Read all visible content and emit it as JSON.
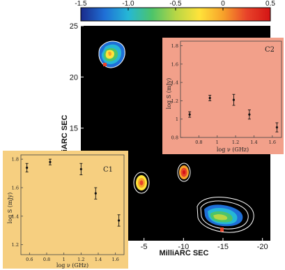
{
  "chart_data": [
    {
      "type": "contour_map",
      "colorbar": {
        "ticks": [
          "-1.5",
          "-1.0",
          "-0.5",
          "0",
          "0.5"
        ],
        "range": [
          -1.5,
          0.5
        ],
        "colors": [
          "#1a2a8a",
          "#1f6fd6",
          "#25b7d6",
          "#4cc46a",
          "#b7d645",
          "#ffe33a",
          "#f7a22a",
          "#e8432a",
          "#d41414"
        ]
      },
      "ylabel": "MilliARC SEC",
      "xlabel": "MilliARC SEC",
      "yticks": [
        "25",
        "20",
        "15",
        "10",
        "5"
      ],
      "xticks": [
        "0",
        "-5",
        "-10",
        "-15",
        "-20"
      ],
      "xlim": [
        3,
        -21
      ],
      "ylim": [
        4,
        25
      ],
      "background_color": "#000000",
      "components": [
        {
          "x": -0.6,
          "y": 20.4,
          "kind": "patch"
        },
        {
          "x": 0.0,
          "y": 1.5,
          "kind": "knot"
        },
        {
          "x": -6.6,
          "y": 3.6,
          "kind": "knot"
        },
        {
          "x": -15.5,
          "y": -2.5,
          "kind": "patch"
        }
      ]
    },
    {
      "type": "scatter",
      "panel_label": "C2",
      "xlabel": "log ν (GHz)",
      "ylabel": "log S (mJy)",
      "xlim": [
        0.6,
        1.7
      ],
      "ylim": [
        0.8,
        1.85
      ],
      "xticks": [
        "0.8",
        "1",
        "1.2",
        "1.4",
        "1.6"
      ],
      "yticks": [
        "0.8",
        "1",
        "1.2",
        "1.4",
        "1.6",
        "1.8"
      ],
      "background_color": "#f2a08a",
      "points": [
        {
          "x": 0.7,
          "y": 1.05,
          "err": 0.03
        },
        {
          "x": 0.92,
          "y": 1.23,
          "err": 0.03
        },
        {
          "x": 1.18,
          "y": 1.21,
          "err": 0.06
        },
        {
          "x": 1.35,
          "y": 1.05,
          "err": 0.05
        },
        {
          "x": 1.65,
          "y": 0.91,
          "err": 0.05
        }
      ]
    },
    {
      "type": "scatter",
      "panel_label": "C1",
      "xlabel": "log ν (GHz)",
      "ylabel": "log S (mJy)",
      "xlim": [
        0.5,
        1.7
      ],
      "ylim": [
        1.13,
        1.83
      ],
      "xticks": [
        "0.6",
        "0.8",
        "1",
        "1.2",
        "1.4",
        "1.6"
      ],
      "yticks": [
        "1.2",
        "1.4",
        "1.6",
        "1.8"
      ],
      "background_color": "#f6cf80",
      "points": [
        {
          "x": 0.57,
          "y": 1.74,
          "err": 0.03
        },
        {
          "x": 0.84,
          "y": 1.78,
          "err": 0.02
        },
        {
          "x": 1.2,
          "y": 1.73,
          "err": 0.04
        },
        {
          "x": 1.37,
          "y": 1.56,
          "err": 0.04
        },
        {
          "x": 1.64,
          "y": 1.37,
          "err": 0.04
        }
      ]
    }
  ]
}
